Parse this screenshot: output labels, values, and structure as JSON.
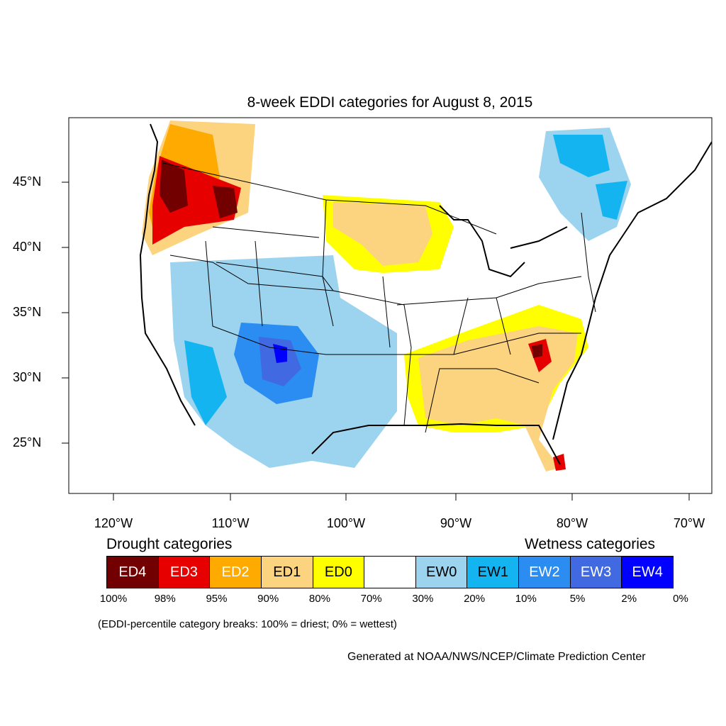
{
  "title": "8-week EDDI categories for August 8, 2015",
  "lat_labels": [
    "45°N",
    "40°N",
    "35°N",
    "30°N",
    "25°N"
  ],
  "lon_labels": [
    "120°W",
    "110°W",
    "100°W",
    "90°W",
    "80°W",
    "70°W"
  ],
  "legend": {
    "drought_heading": "Drought categories",
    "wetness_heading": "Wetness categories",
    "categories": [
      {
        "label": "ED4",
        "color": "#730000",
        "text_color": "#ffffff"
      },
      {
        "label": "ED3",
        "color": "#e60000",
        "text_color": "#ffffff"
      },
      {
        "label": "ED2",
        "color": "#ffaa00",
        "text_color": "#ffffff"
      },
      {
        "label": "ED1",
        "color": "#fcd37f",
        "text_color": "#000000"
      },
      {
        "label": "ED0",
        "color": "#ffff00",
        "text_color": "#000000"
      },
      {
        "label": "",
        "color": "#ffffff",
        "text_color": "#000000"
      },
      {
        "label": "EW0",
        "color": "#9cd4f0",
        "text_color": "#000000"
      },
      {
        "label": "EW1",
        "color": "#14b4f0",
        "text_color": "#000000"
      },
      {
        "label": "EW2",
        "color": "#2b8cf2",
        "text_color": "#ffffff"
      },
      {
        "label": "EW3",
        "color": "#4169e1",
        "text_color": "#ffffff"
      },
      {
        "label": "EW4",
        "color": "#0000ff",
        "text_color": "#ffffff"
      }
    ],
    "breaks": [
      "100%",
      "98%",
      "95%",
      "90%",
      "80%",
      "70%",
      "30%",
      "20%",
      "10%",
      "5%",
      "2%",
      "0%"
    ],
    "note": "(EDDI-percentile category breaks: 100% = driest; 0% = wettest)"
  },
  "credit": "Generated at NOAA/NWS/NCEP/Climate Prediction Center",
  "map_regions": [
    {
      "name": "pacific-northwest",
      "category": "ED4"
    },
    {
      "name": "northern-rockies",
      "category": "ED3"
    },
    {
      "name": "southeast",
      "category": "ED1"
    },
    {
      "name": "southwest",
      "category": "EW2"
    },
    {
      "name": "new-england",
      "category": "EW1"
    }
  ]
}
